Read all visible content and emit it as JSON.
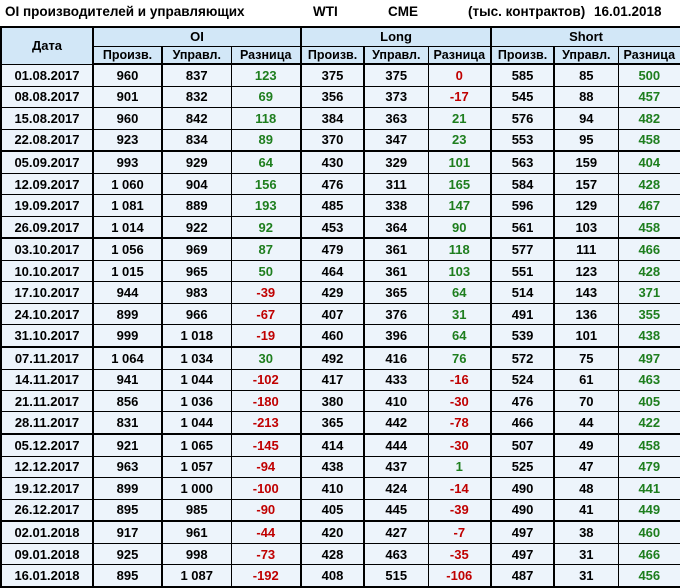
{
  "title_bar": {
    "title": "OI производителей и управляющих",
    "instrument": "WTI",
    "exchange": "CME",
    "units": "(тыс. контрактов)",
    "report_date": "16.01.2018"
  },
  "colors": {
    "header_bg": "#d2e7f7",
    "cell_bg": "#edf4fb",
    "positive_value": "#1e7e1e",
    "negative_value": "#c00000",
    "border": "#000000"
  },
  "table": {
    "date_column_header": "Дата",
    "group_headers": [
      "OI",
      "Long",
      "Short"
    ],
    "sub_headers": [
      "Произв.",
      "Управл.",
      "Разница"
    ],
    "rows": [
      {
        "date": "01.08.2017",
        "month_start": false,
        "values": [
          "960",
          "837",
          "123",
          "375",
          "375",
          "0",
          "585",
          "85",
          "500"
        ]
      },
      {
        "date": "08.08.2017",
        "month_start": false,
        "values": [
          "901",
          "832",
          "69",
          "356",
          "373",
          "-17",
          "545",
          "88",
          "457"
        ]
      },
      {
        "date": "15.08.2017",
        "month_start": false,
        "values": [
          "960",
          "842",
          "118",
          "384",
          "363",
          "21",
          "576",
          "94",
          "482"
        ]
      },
      {
        "date": "22.08.2017",
        "month_start": false,
        "values": [
          "923",
          "834",
          "89",
          "370",
          "347",
          "23",
          "553",
          "95",
          "458"
        ]
      },
      {
        "date": "05.09.2017",
        "month_start": true,
        "values": [
          "993",
          "929",
          "64",
          "430",
          "329",
          "101",
          "563",
          "159",
          "404"
        ]
      },
      {
        "date": "12.09.2017",
        "month_start": false,
        "values": [
          "1 060",
          "904",
          "156",
          "476",
          "311",
          "165",
          "584",
          "157",
          "428"
        ]
      },
      {
        "date": "19.09.2017",
        "month_start": false,
        "values": [
          "1 081",
          "889",
          "193",
          "485",
          "338",
          "147",
          "596",
          "129",
          "467"
        ]
      },
      {
        "date": "26.09.2017",
        "month_start": false,
        "values": [
          "1 014",
          "922",
          "92",
          "453",
          "364",
          "90",
          "561",
          "103",
          "458"
        ]
      },
      {
        "date": "03.10.2017",
        "month_start": true,
        "values": [
          "1 056",
          "969",
          "87",
          "479",
          "361",
          "118",
          "577",
          "111",
          "466"
        ]
      },
      {
        "date": "10.10.2017",
        "month_start": false,
        "values": [
          "1 015",
          "965",
          "50",
          "464",
          "361",
          "103",
          "551",
          "123",
          "428"
        ]
      },
      {
        "date": "17.10.2017",
        "month_start": false,
        "values": [
          "944",
          "983",
          "-39",
          "429",
          "365",
          "64",
          "514",
          "143",
          "371"
        ]
      },
      {
        "date": "24.10.2017",
        "month_start": false,
        "values": [
          "899",
          "966",
          "-67",
          "407",
          "376",
          "31",
          "491",
          "136",
          "355"
        ]
      },
      {
        "date": "31.10.2017",
        "month_start": false,
        "values": [
          "999",
          "1 018",
          "-19",
          "460",
          "396",
          "64",
          "539",
          "101",
          "438"
        ]
      },
      {
        "date": "07.11.2017",
        "month_start": true,
        "values": [
          "1 064",
          "1 034",
          "30",
          "492",
          "416",
          "76",
          "572",
          "75",
          "497"
        ]
      },
      {
        "date": "14.11.2017",
        "month_start": false,
        "values": [
          "941",
          "1 044",
          "-102",
          "417",
          "433",
          "-16",
          "524",
          "61",
          "463"
        ]
      },
      {
        "date": "21.11.2017",
        "month_start": false,
        "values": [
          "856",
          "1 036",
          "-180",
          "380",
          "410",
          "-30",
          "476",
          "70",
          "405"
        ]
      },
      {
        "date": "28.11.2017",
        "month_start": false,
        "values": [
          "831",
          "1 044",
          "-213",
          "365",
          "442",
          "-78",
          "466",
          "44",
          "422"
        ]
      },
      {
        "date": "05.12.2017",
        "month_start": true,
        "values": [
          "921",
          "1 065",
          "-145",
          "414",
          "444",
          "-30",
          "507",
          "49",
          "458"
        ]
      },
      {
        "date": "12.12.2017",
        "month_start": false,
        "values": [
          "963",
          "1 057",
          "-94",
          "438",
          "437",
          "1",
          "525",
          "47",
          "479"
        ]
      },
      {
        "date": "19.12.2017",
        "month_start": false,
        "values": [
          "899",
          "1 000",
          "-100",
          "410",
          "424",
          "-14",
          "490",
          "48",
          "441"
        ]
      },
      {
        "date": "26.12.2017",
        "month_start": false,
        "values": [
          "895",
          "985",
          "-90",
          "405",
          "445",
          "-39",
          "490",
          "41",
          "449"
        ]
      },
      {
        "date": "02.01.2018",
        "month_start": true,
        "values": [
          "917",
          "961",
          "-44",
          "420",
          "427",
          "-7",
          "497",
          "38",
          "460"
        ]
      },
      {
        "date": "09.01.2018",
        "month_start": false,
        "values": [
          "925",
          "998",
          "-73",
          "428",
          "463",
          "-35",
          "497",
          "31",
          "466"
        ]
      },
      {
        "date": "16.01.2018",
        "month_start": false,
        "values": [
          "895",
          "1 087",
          "-192",
          "408",
          "515",
          "-106",
          "487",
          "31",
          "456"
        ]
      }
    ]
  }
}
